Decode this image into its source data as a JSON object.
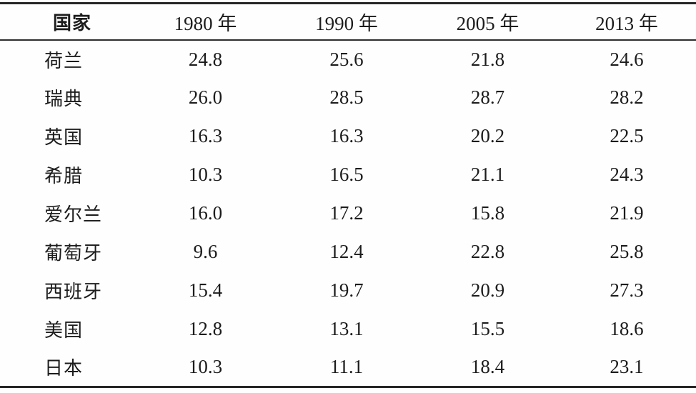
{
  "table": {
    "columns": [
      "国家",
      "1980 年",
      "1990 年",
      "2005 年",
      "2013 年"
    ],
    "rows": [
      {
        "country": "荷兰",
        "values": [
          "24.8",
          "25.6",
          "21.8",
          "24.6"
        ]
      },
      {
        "country": "瑞典",
        "values": [
          "26.0",
          "28.5",
          "28.7",
          "28.2"
        ]
      },
      {
        "country": "英国",
        "values": [
          "16.3",
          "16.3",
          "20.2",
          "22.5"
        ]
      },
      {
        "country": "希腊",
        "values": [
          "10.3",
          "16.5",
          "21.1",
          "24.3"
        ]
      },
      {
        "country": "爱尔兰",
        "values": [
          "16.0",
          "17.2",
          "15.8",
          "21.9"
        ]
      },
      {
        "country": "葡萄牙",
        "values": [
          "9.6",
          "12.4",
          "22.8",
          "25.8"
        ]
      },
      {
        "country": "西班牙",
        "values": [
          "15.4",
          "19.7",
          "20.9",
          "27.3"
        ]
      },
      {
        "country": "美国",
        "values": [
          "12.8",
          "13.1",
          "15.5",
          "18.6"
        ]
      },
      {
        "country": "日本",
        "values": [
          "10.3",
          "11.1",
          "18.4",
          "23.1"
        ]
      }
    ]
  },
  "colors": {
    "ink": "#1c1c1c",
    "rule": "#262626",
    "paper": "#fefefe"
  }
}
